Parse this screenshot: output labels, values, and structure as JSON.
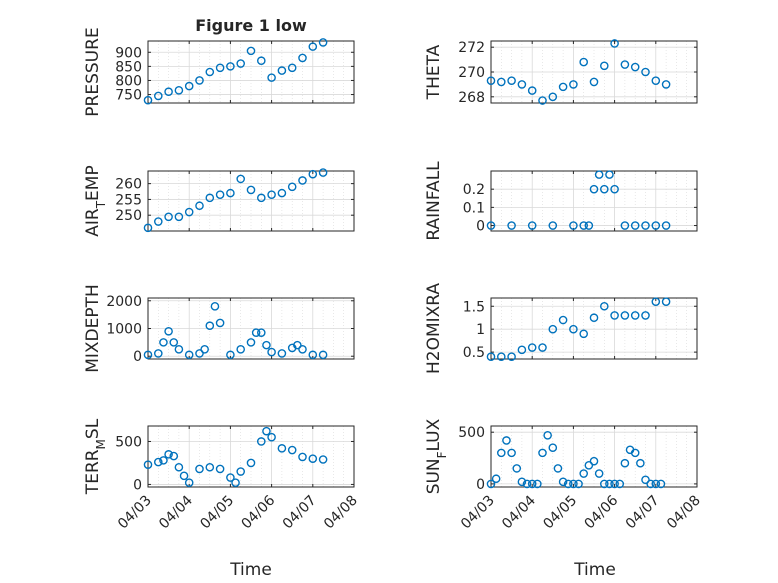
{
  "figure": {
    "title": "Figure 1 low",
    "xlabel": "Time",
    "date_ticks": [
      "04/03",
      "04/04",
      "04/05",
      "04/06",
      "04/07",
      "04/08"
    ],
    "marker_color": "#0072BD",
    "axis_color": "#262626",
    "grid_color": "#d9d9d9"
  },
  "chart_data": [
    {
      "type": "scatter",
      "ylabel": "PRESSURE",
      "xlim": [
        "04/03",
        "04/08"
      ],
      "ylim": [
        720,
        940
      ],
      "yticks": [
        750,
        800,
        850,
        900
      ],
      "grid": true,
      "x": [
        "04/03 00:00",
        "04/03 06:00",
        "04/03 12:00",
        "04/03 18:00",
        "04/04 00:00",
        "04/04 06:00",
        "04/04 12:00",
        "04/04 18:00",
        "04/05 00:00",
        "04/05 06:00",
        "04/05 12:00",
        "04/05 18:00",
        "04/06 00:00",
        "04/06 06:00",
        "04/06 12:00",
        "04/06 18:00",
        "04/07 00:00",
        "04/07 06:00"
      ],
      "y": [
        730,
        745,
        760,
        765,
        780,
        800,
        830,
        845,
        850,
        860,
        905,
        870,
        810,
        835,
        845,
        880,
        920,
        935
      ]
    },
    {
      "type": "scatter",
      "ylabel": "THETA",
      "xlim": [
        "04/03",
        "04/08"
      ],
      "ylim": [
        267.5,
        272.5
      ],
      "yticks": [
        268,
        270,
        272
      ],
      "grid": true,
      "x": [
        "04/03 00:00",
        "04/03 06:00",
        "04/03 12:00",
        "04/03 18:00",
        "04/04 00:00",
        "04/04 06:00",
        "04/04 12:00",
        "04/04 18:00",
        "04/05 00:00",
        "04/05 06:00",
        "04/05 12:00",
        "04/05 18:00",
        "04/06 00:00",
        "04/06 06:00",
        "04/06 12:00",
        "04/06 18:00",
        "04/07 00:00",
        "04/07 06:00"
      ],
      "y": [
        269.3,
        269.2,
        269.3,
        269.0,
        268.5,
        267.7,
        268.0,
        268.8,
        269.0,
        270.8,
        269.2,
        270.5,
        272.3,
        270.6,
        270.4,
        270.0,
        269.3,
        269.0
      ]
    },
    {
      "type": "scatter",
      "ylabel": "AIR_TEMP",
      "xlim": [
        "04/03",
        "04/08"
      ],
      "ylim": [
        245,
        264
      ],
      "yticks": [
        250,
        255,
        260
      ],
      "grid": true,
      "x": [
        "04/03 00:00",
        "04/03 06:00",
        "04/03 12:00",
        "04/03 18:00",
        "04/04 00:00",
        "04/04 06:00",
        "04/04 12:00",
        "04/04 18:00",
        "04/05 00:00",
        "04/05 06:00",
        "04/05 12:00",
        "04/05 18:00",
        "04/06 00:00",
        "04/06 06:00",
        "04/06 12:00",
        "04/06 18:00",
        "04/07 00:00",
        "04/07 06:00"
      ],
      "y": [
        246,
        248,
        249.5,
        249.5,
        251,
        253,
        255.5,
        256.5,
        257,
        261.5,
        258,
        255.5,
        256.5,
        257,
        259,
        261,
        263,
        263.5
      ]
    },
    {
      "type": "scatter",
      "ylabel": "RAINFALL",
      "xlim": [
        "04/03",
        "04/08"
      ],
      "ylim": [
        -0.03,
        0.3
      ],
      "yticks": [
        0,
        0.1,
        0.2
      ],
      "grid": true,
      "x": [
        "04/03 00:00",
        "04/03 12:00",
        "04/04 00:00",
        "04/04 12:00",
        "04/05 00:00",
        "04/05 06:00",
        "04/05 09:00",
        "04/05 12:00",
        "04/05 15:00",
        "04/05 18:00",
        "04/05 21:00",
        "04/06 00:00",
        "04/06 06:00",
        "04/06 12:00",
        "04/06 18:00",
        "04/07 00:00",
        "04/07 06:00"
      ],
      "y": [
        0,
        0,
        0,
        0,
        0,
        0,
        0,
        0.2,
        0.28,
        0.2,
        0.28,
        0.2,
        0,
        0,
        0,
        0,
        0
      ]
    },
    {
      "type": "scatter",
      "ylabel": "MIXDEPTH",
      "xlim": [
        "04/03",
        "04/08"
      ],
      "ylim": [
        -100,
        2100
      ],
      "yticks": [
        0,
        1000,
        2000
      ],
      "grid": true,
      "x": [
        "04/03 00:00",
        "04/03 06:00",
        "04/03 09:00",
        "04/03 12:00",
        "04/03 15:00",
        "04/03 18:00",
        "04/04 00:00",
        "04/04 06:00",
        "04/04 09:00",
        "04/04 12:00",
        "04/04 15:00",
        "04/04 18:00",
        "04/05 00:00",
        "04/05 06:00",
        "04/05 12:00",
        "04/05 15:00",
        "04/05 18:00",
        "04/05 21:00",
        "04/06 00:00",
        "04/06 06:00",
        "04/06 12:00",
        "04/06 15:00",
        "04/06 18:00",
        "04/07 00:00",
        "04/07 06:00"
      ],
      "y": [
        50,
        100,
        500,
        900,
        500,
        250,
        50,
        100,
        250,
        1100,
        1800,
        1200,
        50,
        250,
        500,
        850,
        850,
        400,
        150,
        100,
        300,
        400,
        250,
        50,
        50
      ]
    },
    {
      "type": "scatter",
      "ylabel": "H2OMIXRA",
      "xlim": [
        "04/03",
        "04/08"
      ],
      "ylim": [
        0.35,
        1.68
      ],
      "yticks": [
        0.5,
        1,
        1.5
      ],
      "grid": true,
      "x": [
        "04/03 00:00",
        "04/03 06:00",
        "04/03 12:00",
        "04/03 18:00",
        "04/04 00:00",
        "04/04 06:00",
        "04/04 12:00",
        "04/04 18:00",
        "04/05 00:00",
        "04/05 06:00",
        "04/05 12:00",
        "04/05 18:00",
        "04/06 00:00",
        "04/06 06:00",
        "04/06 12:00",
        "04/06 18:00",
        "04/07 00:00",
        "04/07 06:00"
      ],
      "y": [
        0.4,
        0.4,
        0.4,
        0.55,
        0.6,
        0.6,
        1.0,
        1.2,
        1.0,
        0.9,
        1.25,
        1.5,
        1.3,
        1.3,
        1.3,
        1.3,
        1.6,
        1.6
      ]
    },
    {
      "type": "scatter",
      "ylabel": "TERR_MSL",
      "xlim": [
        "04/03",
        "04/08"
      ],
      "ylim": [
        -30,
        680
      ],
      "yticks": [
        0,
        500
      ],
      "grid": true,
      "x": [
        "04/03 00:00",
        "04/03 06:00",
        "04/03 09:00",
        "04/03 12:00",
        "04/03 15:00",
        "04/03 18:00",
        "04/03 21:00",
        "04/04 00:00",
        "04/04 06:00",
        "04/04 12:00",
        "04/04 18:00",
        "04/05 00:00",
        "04/05 03:00",
        "04/05 06:00",
        "04/05 12:00",
        "04/05 18:00",
        "04/05 21:00",
        "04/06 00:00",
        "04/06 06:00",
        "04/06 12:00",
        "04/06 18:00",
        "04/07 00:00",
        "04/07 06:00"
      ],
      "y": [
        230,
        260,
        280,
        350,
        330,
        200,
        100,
        20,
        180,
        200,
        180,
        80,
        20,
        150,
        250,
        500,
        620,
        550,
        420,
        400,
        320,
        300,
        290
      ]
    },
    {
      "type": "scatter",
      "ylabel": "SUN_FLUX",
      "xlim": [
        "04/03",
        "04/08"
      ],
      "ylim": [
        -30,
        560
      ],
      "yticks": [
        0,
        500
      ],
      "grid": true,
      "x": [
        "04/03 00:00",
        "04/03 03:00",
        "04/03 06:00",
        "04/03 09:00",
        "04/03 12:00",
        "04/03 15:00",
        "04/03 18:00",
        "04/03 21:00",
        "04/04 00:00",
        "04/04 03:00",
        "04/04 06:00",
        "04/04 09:00",
        "04/04 12:00",
        "04/04 15:00",
        "04/04 18:00",
        "04/04 21:00",
        "04/05 00:00",
        "04/05 03:00",
        "04/05 06:00",
        "04/05 09:00",
        "04/05 12:00",
        "04/05 15:00",
        "04/05 18:00",
        "04/05 21:00",
        "04/06 00:00",
        "04/06 03:00",
        "04/06 06:00",
        "04/06 09:00",
        "04/06 12:00",
        "04/06 15:00",
        "04/06 18:00",
        "04/06 21:00",
        "04/07 00:00",
        "04/07 03:00"
      ],
      "y": [
        0,
        50,
        300,
        420,
        300,
        150,
        20,
        0,
        0,
        0,
        300,
        470,
        350,
        150,
        20,
        0,
        0,
        0,
        100,
        180,
        220,
        100,
        0,
        0,
        0,
        0,
        200,
        330,
        300,
        200,
        40,
        0,
        0,
        0
      ]
    }
  ]
}
